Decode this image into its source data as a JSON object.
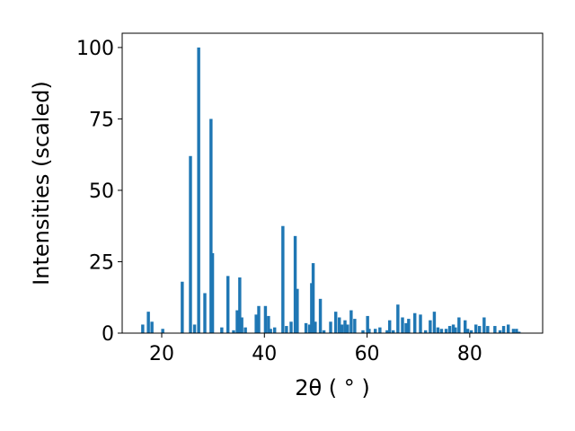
{
  "chart_data": {
    "type": "bar",
    "xlabel": "2θ ( ° )",
    "ylabel": "Intensities (scaled)",
    "color": "#1f77b4",
    "x": [
      16.3,
      17.4,
      18.1,
      20.2,
      24.0,
      25.6,
      26.4,
      27.2,
      28.4,
      29.6,
      29.9,
      31.7,
      32.9,
      34.0,
      34.7,
      35.2,
      35.6,
      36.3,
      38.4,
      38.9,
      40.2,
      40.8,
      41.2,
      42.0,
      43.6,
      44.3,
      45.2,
      46.0,
      46.4,
      48.1,
      48.8,
      49.2,
      49.5,
      49.9,
      50.9,
      51.6,
      52.9,
      53.9,
      54.6,
      55.1,
      55.7,
      56.2,
      56.9,
      57.6,
      59.2,
      60.1,
      60.4,
      61.6,
      62.5,
      63.9,
      64.4,
      65.1,
      66.0,
      66.9,
      67.6,
      68.1,
      69.3,
      70.4,
      71.4,
      72.3,
      73.1,
      73.8,
      74.5,
      75.4,
      76.1,
      76.8,
      77.2,
      77.9,
      79.1,
      79.6,
      80.3,
      81.2,
      81.9,
      82.8,
      83.5,
      84.9,
      85.9,
      86.6,
      87.5,
      88.5,
      89.1,
      89.6
    ],
    "values": [
      3,
      7.5,
      4,
      1.5,
      18,
      62,
      3,
      100,
      14,
      75,
      28,
      2,
      20,
      1,
      8,
      19.5,
      5.5,
      2,
      6.5,
      9.5,
      9.5,
      6,
      1.5,
      2,
      37.5,
      2.5,
      4,
      34,
      15.5,
      3.5,
      3,
      17.5,
      24.5,
      4,
      12,
      1,
      4,
      7.5,
      5.5,
      3,
      4.5,
      3,
      8,
      5,
      1,
      6,
      1.5,
      1.5,
      2,
      1,
      4.5,
      1,
      10,
      5.5,
      3.5,
      5,
      7,
      6.5,
      1,
      4.5,
      7.5,
      2,
      1.5,
      1.5,
      2.5,
      3,
      2,
      5.5,
      4.5,
      1.5,
      1,
      3,
      2.5,
      5.5,
      2.5,
      2.5,
      1,
      2.5,
      3,
      1.5,
      1.5,
      0.5
    ],
    "xlim": [
      12.3,
      94.2
    ],
    "ylim": [
      0,
      105
    ],
    "xticks": [
      20,
      40,
      60,
      80
    ],
    "yticks": [
      0,
      25,
      50,
      75,
      100
    ]
  }
}
